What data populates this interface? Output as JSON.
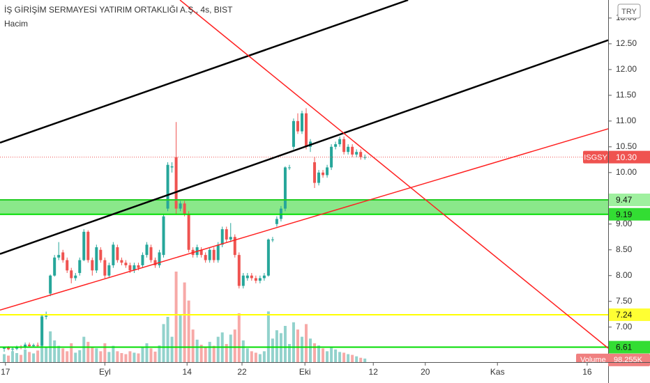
{
  "chart_data": {
    "type": "candlestick",
    "title": "İŞ GİRİŞİM SERMAYESİ YATIRIM ORTAKLIĞI A.Ş., 4s, BIST",
    "volume_legend": "Hacim",
    "currency": "TRY",
    "x": [
      1,
      2,
      3,
      4,
      5,
      6,
      7,
      8,
      9,
      10,
      11,
      12,
      13,
      14,
      15,
      16,
      17,
      18,
      19,
      20,
      21,
      22,
      23,
      24,
      25,
      26,
      27,
      28,
      29,
      30,
      31,
      32,
      33,
      34,
      35,
      36,
      37,
      38,
      39,
      40,
      41,
      42,
      43,
      44,
      45,
      46,
      47,
      48,
      49,
      50,
      51,
      52,
      53,
      54,
      55,
      56,
      57,
      58,
      59,
      60,
      61,
      62,
      63,
      64,
      65,
      66,
      67,
      68,
      69,
      70,
      71,
      72,
      73,
      74,
      75,
      76,
      77,
      78,
      79,
      80,
      81,
      82,
      83,
      84,
      85,
      86,
      87
    ],
    "open": [
      6.58,
      6.6,
      6.57,
      6.58,
      6.62,
      6.6,
      6.66,
      6.63,
      6.65,
      6.64,
      7.2,
      7.65,
      8.0,
      8.35,
      8.45,
      8.3,
      8.1,
      7.95,
      8.05,
      8.3,
      8.85,
      8.3,
      8.1,
      8.5,
      8.3,
      8.0,
      8.2,
      8.55,
      8.3,
      8.25,
      8.2,
      8.1,
      8.2,
      8.2,
      8.4,
      8.55,
      8.3,
      8.2,
      8.4,
      9.3,
      10.1,
      10.3,
      9.3,
      9.4,
      9.2,
      8.5,
      8.4,
      8.5,
      8.4,
      8.3,
      8.5,
      8.3,
      8.6,
      8.9,
      8.7,
      8.75,
      8.4,
      7.8,
      7.95,
      8.0,
      7.95,
      7.9,
      7.95,
      8.0,
      8.7,
      9.0,
      9.1,
      9.3,
      10.1,
      10.5,
      11.0,
      10.8,
      11.15,
      10.5,
      10.2,
      9.8,
      10.0,
      9.95,
      10.1,
      10.5,
      10.55,
      10.65,
      10.4,
      10.5,
      10.35,
      10.4,
      10.3
    ],
    "high": [
      6.62,
      6.63,
      6.6,
      6.64,
      6.65,
      6.7,
      6.7,
      6.68,
      6.7,
      7.24,
      7.3,
      8.02,
      8.4,
      8.65,
      8.5,
      8.35,
      8.15,
      8.05,
      8.35,
      8.9,
      8.88,
      8.35,
      8.6,
      8.55,
      8.35,
      8.25,
      8.65,
      8.6,
      8.35,
      8.3,
      8.25,
      8.25,
      8.25,
      8.45,
      8.65,
      8.6,
      8.35,
      8.5,
      9.2,
      10.2,
      10.2,
      10.98,
      9.45,
      9.45,
      9.25,
      8.55,
      8.6,
      8.55,
      8.45,
      8.55,
      8.55,
      8.65,
      8.95,
      8.95,
      9.02,
      8.8,
      8.45,
      8.05,
      8.05,
      8.05,
      8.0,
      8.0,
      8.05,
      8.72,
      8.75,
      9.15,
      9.35,
      10.12,
      10.15,
      11.05,
      11.15,
      11.2,
      11.25,
      10.65,
      10.3,
      10.05,
      10.05,
      10.15,
      10.55,
      10.6,
      10.7,
      10.7,
      10.55,
      10.55,
      10.45,
      10.45,
      10.35
    ],
    "low": [
      6.52,
      6.55,
      6.53,
      6.55,
      6.57,
      6.58,
      6.6,
      6.6,
      6.6,
      6.62,
      7.15,
      7.6,
      7.98,
      8.3,
      8.25,
      8.05,
      7.85,
      7.9,
      8.0,
      8.28,
      8.25,
      8.0,
      8.05,
      8.25,
      7.95,
      7.95,
      8.15,
      8.25,
      8.2,
      8.15,
      8.05,
      8.05,
      8.1,
      8.15,
      8.35,
      8.25,
      8.15,
      8.15,
      8.35,
      9.25,
      10.0,
      9.2,
      9.25,
      9.15,
      8.45,
      8.35,
      8.35,
      8.35,
      8.25,
      8.25,
      8.25,
      8.25,
      8.55,
      8.65,
      8.65,
      8.35,
      7.75,
      7.75,
      7.9,
      7.9,
      7.85,
      7.85,
      7.9,
      7.98,
      8.65,
      8.95,
      9.05,
      9.25,
      10.05,
      10.45,
      10.75,
      10.75,
      10.45,
      10.4,
      9.7,
      9.75,
      9.9,
      9.9,
      10.05,
      10.45,
      10.5,
      10.35,
      10.35,
      10.3,
      10.3,
      10.25,
      10.25
    ],
    "close": [
      6.6,
      6.57,
      6.58,
      6.62,
      6.6,
      6.66,
      6.63,
      6.65,
      6.64,
      7.2,
      7.22,
      8.0,
      8.35,
      8.4,
      8.3,
      8.1,
      7.95,
      8.0,
      8.3,
      8.85,
      8.3,
      8.1,
      8.55,
      8.3,
      8.0,
      8.2,
      8.6,
      8.3,
      8.25,
      8.2,
      8.1,
      8.2,
      8.15,
      8.4,
      8.6,
      8.3,
      8.2,
      8.45,
      9.15,
      10.15,
      10.12,
      9.3,
      9.4,
      9.2,
      8.5,
      8.4,
      8.55,
      8.4,
      8.3,
      8.5,
      8.3,
      8.6,
      8.9,
      8.7,
      8.75,
      8.4,
      7.8,
      8.0,
      8.0,
      7.95,
      7.9,
      7.95,
      8.0,
      8.7,
      8.7,
      9.1,
      9.3,
      10.1,
      10.1,
      11.0,
      10.8,
      11.15,
      10.5,
      10.6,
      9.8,
      10.0,
      9.95,
      10.1,
      10.5,
      10.55,
      10.65,
      10.4,
      10.5,
      10.35,
      10.4,
      10.3,
      10.3
    ],
    "up_color": "#26a69a",
    "down_color": "#ef5350",
    "volume": {
      "name": "Volume",
      "axis": "y2",
      "label": "98.255K",
      "values": [
        220,
        180,
        300,
        250,
        200,
        350,
        280,
        240,
        320,
        1290,
        400,
        850,
        600,
        450,
        380,
        300,
        520,
        260,
        330,
        700,
        560,
        420,
        380,
        300,
        520,
        280,
        450,
        300,
        250,
        220,
        300,
        260,
        240,
        400,
        520,
        380,
        290,
        460,
        1050,
        1250,
        700,
        2500,
        1300,
        2200,
        1700,
        900,
        620,
        480,
        400,
        560,
        450,
        700,
        820,
        500,
        760,
        900,
        1350,
        600,
        380,
        300,
        260,
        220,
        300,
        1400,
        650,
        880,
        800,
        1000,
        500,
        1100,
        900,
        700,
        1050,
        650,
        520,
        460,
        380,
        300,
        400,
        350,
        280,
        260,
        220,
        200,
        160,
        120,
        98.255
      ],
      "up_color": "#92d2cc",
      "down_color": "#f7a9a7"
    },
    "xlim": [
      0,
      145
    ],
    "ylim": [
      6.32,
      13.35
    ],
    "y2lim": [
      0,
      10000
    ],
    "xticks": [
      {
        "value": 1.3,
        "label": "17"
      },
      {
        "value": 25,
        "label": "Eyl"
      },
      {
        "value": 44.6,
        "label": "14"
      },
      {
        "value": 57.7,
        "label": "22"
      },
      {
        "value": 72.7,
        "label": "Eki"
      },
      {
        "value": 89,
        "label": "12"
      },
      {
        "value": 101.4,
        "label": "20"
      },
      {
        "value": 118.6,
        "label": "Kas"
      },
      {
        "value": 140,
        "label": "16"
      }
    ],
    "yticks": [
      {
        "value": 7,
        "label": "7.00"
      },
      {
        "value": 7.5,
        "label": "7.50"
      },
      {
        "value": 8,
        "label": "8.00"
      },
      {
        "value": 8.5,
        "label": "8.50"
      },
      {
        "value": 9,
        "label": "9.00"
      },
      {
        "value": 10,
        "label": "10.00"
      },
      {
        "value": 10.5,
        "label": "10.50"
      },
      {
        "value": 11,
        "label": "11.00"
      },
      {
        "value": 11.5,
        "label": "11.50"
      },
      {
        "value": 12,
        "label": "12.00"
      },
      {
        "value": 12.5,
        "label": "12.50"
      },
      {
        "value": 13,
        "label": "13.00"
      }
    ],
    "last_price": {
      "symbol": "ISGSY",
      "value": 10.3,
      "label": "10.30",
      "color": "#ef5350"
    },
    "zone": [
      9.19,
      9.47
    ],
    "zone_color": "#63e063",
    "levels": [
      {
        "value": 9.47,
        "color": "#22cc22",
        "label_bg": "#9ff09f"
      },
      {
        "value": 9.19,
        "color": "#00dd00",
        "label_bg": "#33dd33"
      },
      {
        "value": 7.24,
        "color": "#ffff00",
        "label_bg": "#ffff33"
      },
      {
        "value": 6.61,
        "color": "#00dd00",
        "label_bg": "#33dd33"
      }
    ],
    "drawings": [
      {
        "color": "#000000",
        "points": [
          [
            0,
            10.58
          ],
          [
            97.3,
            13.35
          ]
        ]
      },
      {
        "color": "#000000",
        "points": [
          [
            0,
            8.42
          ],
          [
            145,
            12.57
          ]
        ]
      },
      {
        "color": "#ff2020",
        "points": [
          [
            0,
            7.33
          ],
          [
            145,
            10.85
          ]
        ]
      },
      {
        "color": "#ff2020",
        "points": [
          [
            42.9,
            13.35
          ],
          [
            145,
            6.59
          ]
        ]
      }
    ]
  }
}
